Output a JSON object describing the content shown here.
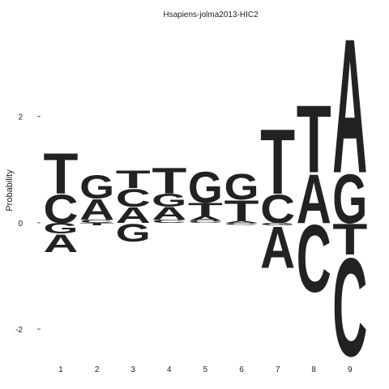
{
  "chart_data": {
    "type": "sequence-logo",
    "title": "Hsapiens-jolma2013-HIC2",
    "ylabel": "Probability",
    "xlabel": "",
    "ylim": [
      -2.7,
      3.55
    ],
    "yticks": [
      -2,
      0,
      2
    ],
    "positions": [
      1,
      2,
      3,
      4,
      5,
      6,
      7,
      8,
      9
    ],
    "colors": {
      "A": "#109648",
      "C": "#255C99",
      "G": "#F7A31C",
      "T": "#D62839"
    },
    "columns": [
      {
        "position": 1,
        "above": [
          {
            "base": "C",
            "value": 0.55
          },
          {
            "base": "T",
            "value": 0.78
          }
        ],
        "below": [
          {
            "base": "G",
            "value": 0.2
          },
          {
            "base": "A",
            "value": 0.35
          }
        ]
      },
      {
        "position": 2,
        "above": [
          {
            "base": "C",
            "value": 0.06
          },
          {
            "base": "A",
            "value": 0.4
          },
          {
            "base": "G",
            "value": 0.45
          }
        ],
        "below": [
          {
            "base": "T",
            "value": 0.05
          }
        ]
      },
      {
        "position": 3,
        "above": [
          {
            "base": "A",
            "value": 0.3
          },
          {
            "base": "C",
            "value": 0.35
          },
          {
            "base": "T",
            "value": 0.35
          }
        ],
        "below": [
          {
            "base": "G",
            "value": 0.35
          }
        ]
      },
      {
        "position": 4,
        "above": [
          {
            "base": "C",
            "value": 0.06
          },
          {
            "base": "A",
            "value": 0.24
          },
          {
            "base": "G",
            "value": 0.25
          },
          {
            "base": "T",
            "value": 0.5
          }
        ],
        "below": []
      },
      {
        "position": 5,
        "above": [
          {
            "base": "C",
            "value": 0.04
          },
          {
            "base": "A",
            "value": 0.09
          },
          {
            "base": "T",
            "value": 0.25
          },
          {
            "base": "G",
            "value": 0.6
          }
        ],
        "below": []
      },
      {
        "position": 6,
        "above": [
          {
            "base": "A",
            "value": 0.04
          },
          {
            "base": "T",
            "value": 0.4
          },
          {
            "base": "G",
            "value": 0.5
          }
        ],
        "below": [
          {
            "base": "C",
            "value": 0.04
          }
        ]
      },
      {
        "position": 7,
        "above": [
          {
            "base": "C",
            "value": 0.55
          },
          {
            "base": "T",
            "value": 1.25
          }
        ],
        "below": [
          {
            "base": "G",
            "value": 0.05
          },
          {
            "base": "A",
            "value": 0.8
          }
        ]
      },
      {
        "position": 8,
        "above": [
          {
            "base": "A",
            "value": 0.95
          },
          {
            "base": "T",
            "value": 1.3
          }
        ],
        "below": [
          {
            "base": "C",
            "value": 1.3
          }
        ]
      },
      {
        "position": 9,
        "above": [
          {
            "base": "G",
            "value": 0.95
          },
          {
            "base": "A",
            "value": 2.6
          }
        ],
        "below": [
          {
            "base": "T",
            "value": 0.6
          },
          {
            "base": "C",
            "value": 1.9
          }
        ]
      }
    ]
  }
}
